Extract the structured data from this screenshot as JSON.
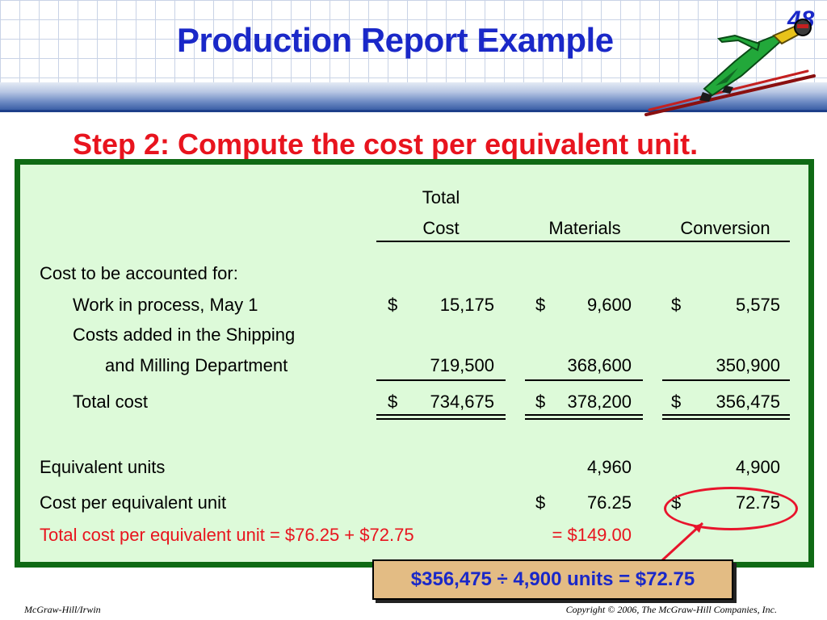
{
  "slide": {
    "title": "Production Report Example",
    "number": "48",
    "step": "Step 2: Compute the cost per equivalent unit."
  },
  "table": {
    "headers": {
      "total_line1": "Total",
      "total_line2": "Cost",
      "materials": "Materials",
      "conversion": "Conversion"
    },
    "section_label": "Cost to be accounted for:",
    "wip": {
      "label": "Work in process, May 1",
      "total_sym": "$",
      "total": "15,175",
      "mat_sym": "$",
      "mat": "9,600",
      "conv_sym": "$",
      "conv": "5,575"
    },
    "added": {
      "label_line1": "Costs added in the Shipping",
      "label_line2": "and Milling Department",
      "total": "719,500",
      "mat": "368,600",
      "conv": "350,900"
    },
    "total_cost": {
      "label": "Total cost",
      "total_sym": "$",
      "total": "734,675",
      "mat_sym": "$",
      "mat": "378,200",
      "conv_sym": "$",
      "conv": "356,475"
    },
    "equivalent_units": {
      "label": "Equivalent units",
      "mat": "4,960",
      "conv": "4,900"
    },
    "cost_per_unit": {
      "label": "Cost per equivalent unit",
      "mat_sym": "$",
      "mat": "76.25",
      "conv_sym": "$",
      "conv": "72.75"
    },
    "total_per_unit": {
      "label": "Total cost per equivalent unit = $76.25 + $72.75",
      "result": "= $149.00"
    }
  },
  "callout": "$356,475 ÷ 4,900 units = $72.75",
  "footer": {
    "left": "McGraw-Hill/Irwin",
    "right": "Copyright © 2006, The McGraw-Hill Companies, Inc."
  },
  "colors": {
    "title_blue": "#1a28c8",
    "accent_red": "#e8141e",
    "panel_green": "#ddfad9",
    "panel_border": "#0f6a14",
    "callout_tan": "#e3bc84"
  },
  "icons": [
    "ski-jumper-icon"
  ]
}
